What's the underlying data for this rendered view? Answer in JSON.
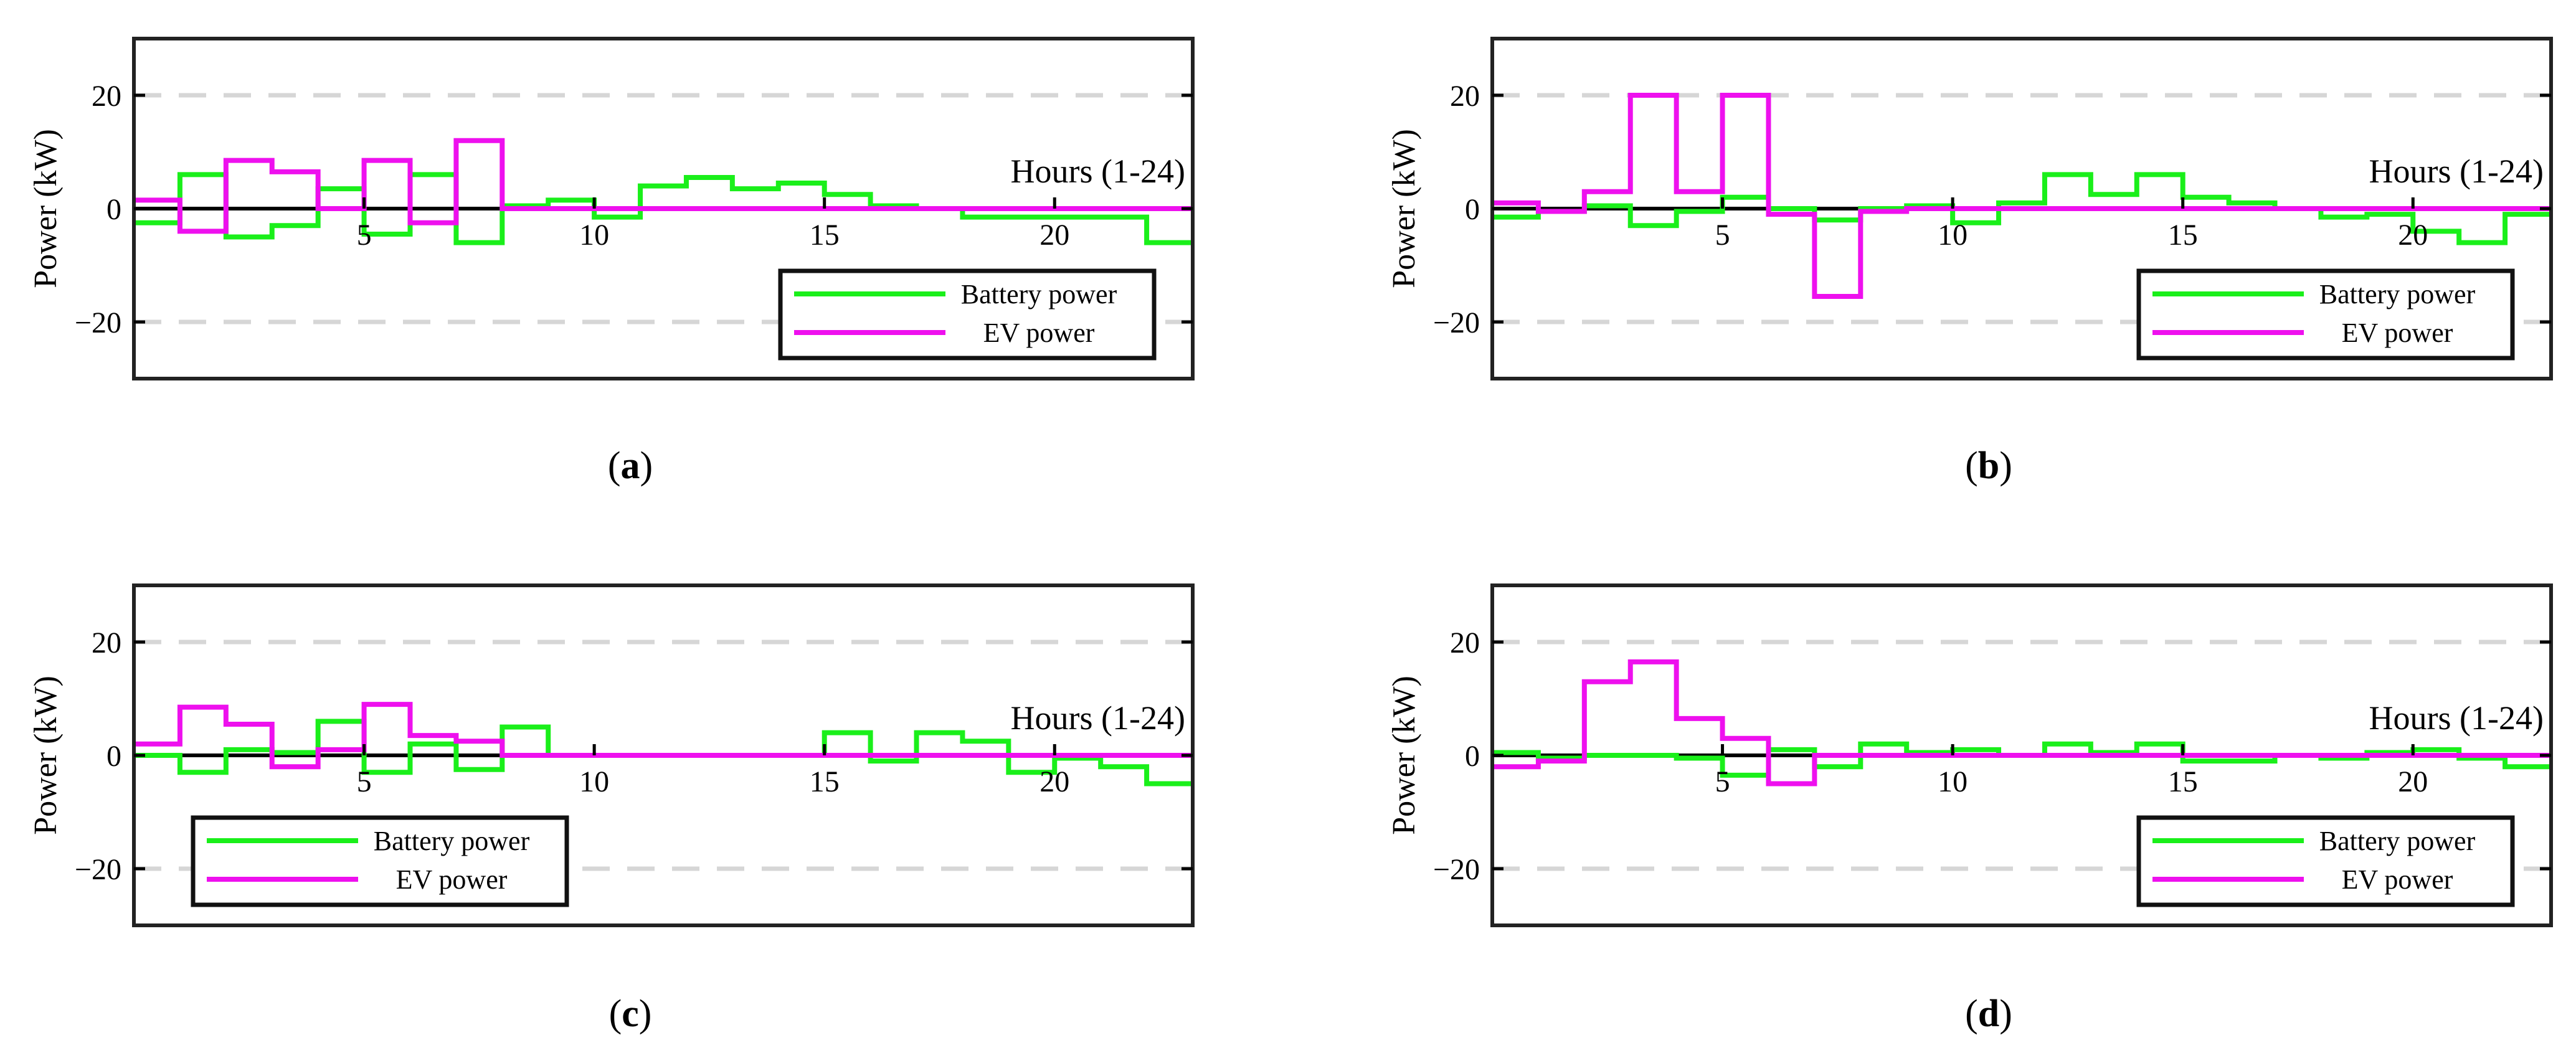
{
  "figure": {
    "panels": [
      {
        "caption_letter": "a"
      },
      {
        "caption_letter": "b"
      },
      {
        "caption_letter": "c"
      },
      {
        "caption_letter": "d"
      }
    ]
  },
  "colors": {
    "battery": "#1aef1a",
    "ev": "#ee10ee",
    "zero_line": "#000000",
    "grid": "#d6d6d6",
    "frame": "#222222"
  },
  "chart_data": [
    {
      "type": "line",
      "step": true,
      "panel": "a",
      "ylabel": "Power (kW)",
      "xlabel": "Hours (1-24)",
      "xlim": [
        0,
        23
      ],
      "ylim": [
        -30,
        30
      ],
      "xticks": [
        5,
        10,
        15,
        20
      ],
      "yticks": [
        -20,
        0,
        20
      ],
      "yticklabels": [
        "−20",
        "0",
        "20"
      ],
      "grid": "dashed horizontal at ±20",
      "legend_position": "bottom-right",
      "x": [
        1,
        2,
        3,
        4,
        5,
        6,
        7,
        8,
        9,
        10,
        11,
        12,
        13,
        14,
        15,
        16,
        17,
        18,
        19,
        20,
        21,
        22,
        23,
        24
      ],
      "series": [
        {
          "name": "Battery power",
          "values": [
            -2.5,
            6,
            -5,
            -3,
            3.5,
            -4.5,
            6,
            -6,
            0.5,
            1.5,
            -1.5,
            4,
            5.5,
            3.5,
            4.5,
            2.5,
            0.5,
            0,
            -1.5,
            -1.5,
            -1.5,
            -1.5,
            -6,
            -6
          ]
        },
        {
          "name": "EV power",
          "values": [
            1.5,
            -4,
            8.5,
            6.5,
            0,
            8.5,
            -2.5,
            12,
            0,
            0,
            0,
            0,
            0,
            0,
            0,
            0,
            0,
            0,
            0,
            0,
            0,
            0,
            0,
            0
          ]
        }
      ]
    },
    {
      "type": "line",
      "step": true,
      "panel": "b",
      "ylabel": "Power (kW)",
      "xlabel": "Hours (1-24)",
      "xlim": [
        0,
        23
      ],
      "ylim": [
        -30,
        30
      ],
      "xticks": [
        5,
        10,
        15,
        20
      ],
      "yticks": [
        -20,
        0,
        20
      ],
      "yticklabels": [
        "−20",
        "0",
        "20"
      ],
      "grid": "dashed horizontal at ±20",
      "legend_position": "bottom-right",
      "x": [
        1,
        2,
        3,
        4,
        5,
        6,
        7,
        8,
        9,
        10,
        11,
        12,
        13,
        14,
        15,
        16,
        17,
        18,
        19,
        20,
        21,
        22,
        23,
        24
      ],
      "series": [
        {
          "name": "Battery power",
          "values": [
            -1.5,
            -0.5,
            0.5,
            -3,
            -0.5,
            2,
            0,
            -2,
            0,
            0.5,
            -2.5,
            1,
            6,
            2.5,
            6,
            2,
            1,
            0,
            -1.5,
            -1,
            -4,
            -6,
            -1,
            -1
          ]
        },
        {
          "name": "EV power",
          "values": [
            1,
            -0.5,
            3,
            20,
            3,
            20,
            -1,
            -15.5,
            -0.5,
            0,
            0,
            0,
            0,
            0,
            0,
            0,
            0,
            0,
            0,
            0,
            0,
            0,
            0,
            0
          ]
        }
      ]
    },
    {
      "type": "line",
      "step": true,
      "panel": "c",
      "ylabel": "Power (kW)",
      "xlabel": "Hours (1-24)",
      "xlim": [
        0,
        23
      ],
      "ylim": [
        -30,
        30
      ],
      "xticks": [
        5,
        10,
        15,
        20
      ],
      "yticks": [
        -20,
        0,
        20
      ],
      "yticklabels": [
        "−20",
        "0",
        "20"
      ],
      "grid": "dashed horizontal at ±20",
      "legend_position": "bottom-left",
      "x": [
        1,
        2,
        3,
        4,
        5,
        6,
        7,
        8,
        9,
        10,
        11,
        12,
        13,
        14,
        15,
        16,
        17,
        18,
        19,
        20,
        21,
        22,
        23,
        24
      ],
      "series": [
        {
          "name": "Battery power",
          "values": [
            0,
            -3,
            1,
            0.5,
            6,
            -3,
            2,
            -2.5,
            5,
            0,
            0,
            0,
            0,
            0,
            0,
            4,
            -1,
            4,
            2.5,
            -3,
            -0.5,
            -2,
            -5,
            -5
          ]
        },
        {
          "name": "EV power",
          "values": [
            2,
            8.5,
            5.5,
            -2,
            1,
            9,
            3.5,
            2.5,
            0,
            0,
            0,
            0,
            0,
            0,
            0,
            0,
            0,
            0,
            0,
            0,
            0,
            0,
            0,
            0
          ]
        }
      ]
    },
    {
      "type": "line",
      "step": true,
      "panel": "d",
      "ylabel": "Power (kW)",
      "xlabel": "Hours (1-24)",
      "xlim": [
        0,
        23
      ],
      "ylim": [
        -30,
        30
      ],
      "xticks": [
        5,
        10,
        15,
        20
      ],
      "yticks": [
        -20,
        0,
        20
      ],
      "yticklabels": [
        "−20",
        "0",
        "20"
      ],
      "grid": "dashed horizontal at ±20",
      "legend_position": "bottom-right",
      "x": [
        1,
        2,
        3,
        4,
        5,
        6,
        7,
        8,
        9,
        10,
        11,
        12,
        13,
        14,
        15,
        16,
        17,
        18,
        19,
        20,
        21,
        22,
        23,
        24
      ],
      "series": [
        {
          "name": "Battery power",
          "values": [
            0.5,
            -0.5,
            0,
            0,
            -0.5,
            -3.5,
            1,
            -2,
            2,
            0.5,
            1,
            0,
            2,
            0.5,
            2,
            -1,
            -1,
            0,
            -0.5,
            0.5,
            1,
            -0.5,
            -2,
            -2
          ]
        },
        {
          "name": "EV power",
          "values": [
            -2,
            -1,
            13,
            16.5,
            6.5,
            3,
            -5,
            0,
            0,
            0,
            0,
            0,
            0,
            0,
            0,
            0,
            0,
            0,
            0,
            0,
            0,
            0,
            0,
            0
          ]
        }
      ]
    }
  ]
}
